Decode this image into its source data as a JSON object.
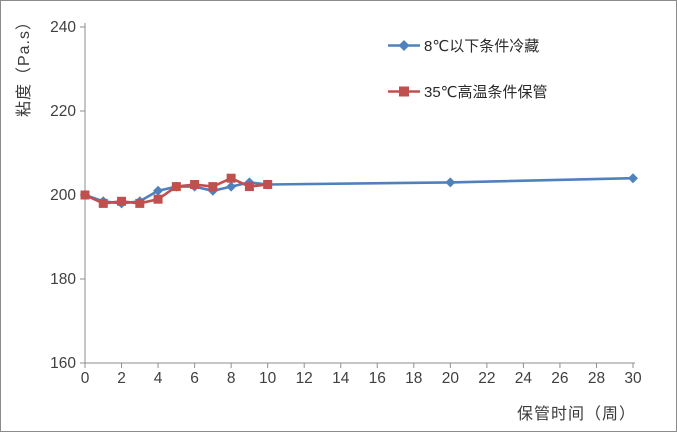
{
  "chart_data": {
    "type": "line",
    "title": "",
    "xlabel": "保管时间（周）",
    "ylabel": "粘度（Pa.s）",
    "xlim": [
      0,
      30
    ],
    "ylim": [
      160,
      240
    ],
    "x_ticks": [
      0,
      2,
      4,
      6,
      8,
      10,
      12,
      14,
      16,
      18,
      20,
      22,
      24,
      26,
      28,
      30
    ],
    "y_ticks": [
      160,
      180,
      200,
      220,
      240
    ],
    "grid": false,
    "legend_position": "inside-top-right",
    "series": [
      {
        "name": "8℃以下条件冷藏",
        "color": "#4f81bd",
        "marker": "diamond",
        "x": [
          0,
          1,
          2,
          3,
          4,
          5,
          6,
          7,
          8,
          9,
          10,
          20,
          30
        ],
        "y": [
          200,
          198.5,
          198,
          198.5,
          201,
          202,
          202,
          201,
          202,
          203,
          202.5,
          203,
          204
        ]
      },
      {
        "name": "35℃高温条件保管",
        "color": "#c0504d",
        "marker": "square",
        "x": [
          0,
          1,
          2,
          3,
          4,
          5,
          6,
          7,
          8,
          9,
          10
        ],
        "y": [
          200,
          198,
          198.5,
          198,
          199,
          202,
          202.5,
          202,
          204,
          202,
          202.5
        ]
      }
    ]
  },
  "style": {
    "axis_color": "#8e8e8e",
    "tick_label_color": "#404040",
    "background": "#ffffff"
  }
}
